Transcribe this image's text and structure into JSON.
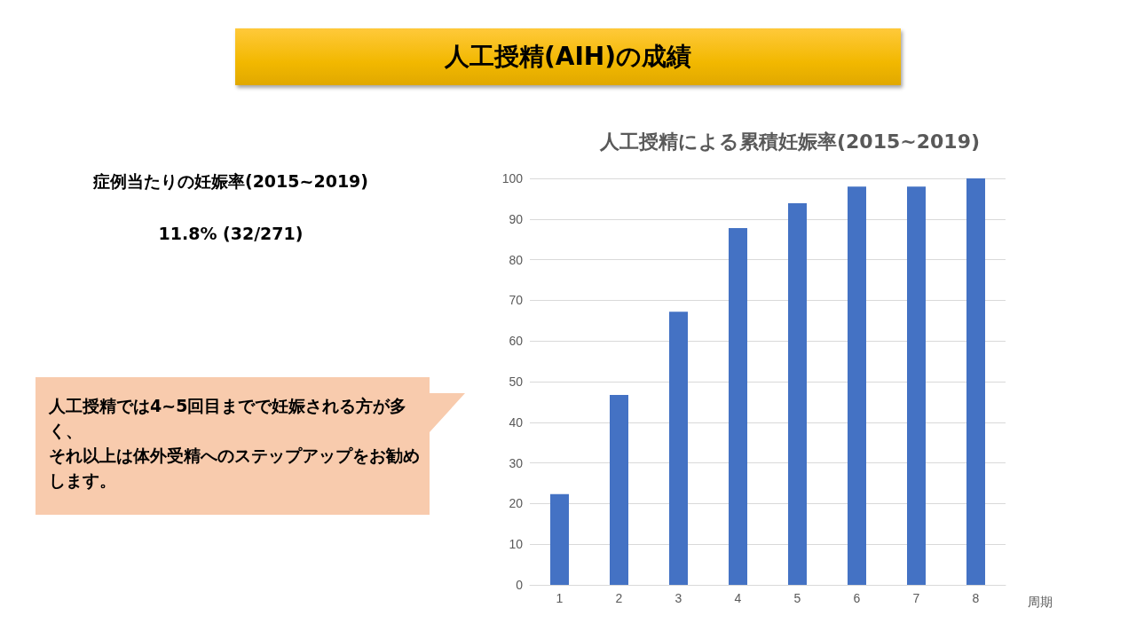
{
  "chart_data": {
    "type": "bar",
    "title": "人工授精(AIH)の成績",
    "subtitle": "人工授精による累積妊娠率(2015~2019)",
    "xlabel": "周期",
    "categories": [
      "1",
      "2",
      "3",
      "4",
      "5",
      "6",
      "7",
      "8"
    ],
    "values": [
      22.3,
      46.7,
      67.2,
      87.8,
      93.9,
      98.0,
      98.0,
      100
    ],
    "color": "#4472c4",
    "ylim": [
      0,
      100
    ],
    "yticks": [
      0,
      10,
      20,
      30,
      40,
      50,
      60,
      70,
      80,
      90,
      100
    ],
    "grid": "y",
    "annotations": [
      "症例当たりの妊娠率(2015~2019)",
      "11.8% (32/271)",
      "人工授精では4~5回目までで妊娠される方が多く、",
      "それ以上は体外受精へのステップアップをお勧めします。"
    ]
  }
}
